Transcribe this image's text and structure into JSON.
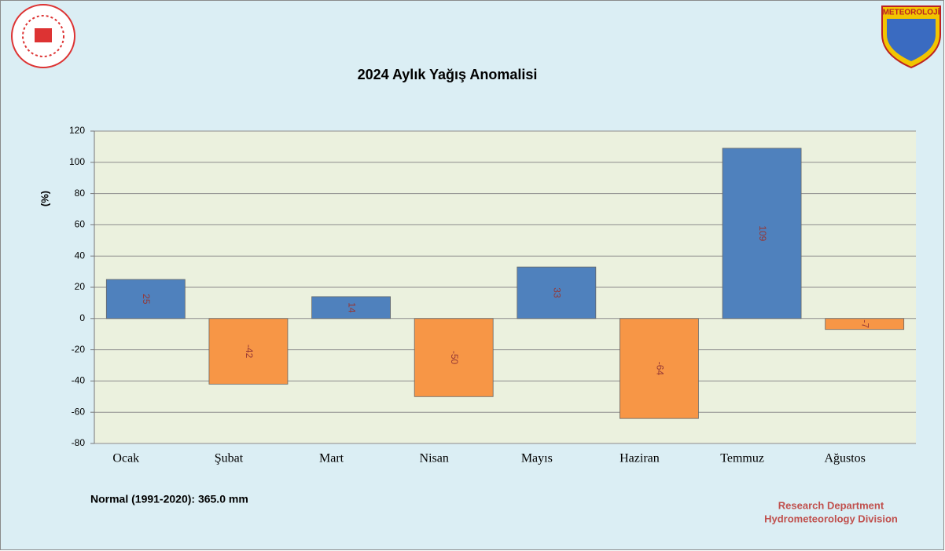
{
  "chart_data": {
    "type": "bar",
    "title": "2024 Aylık Yağış Anomalisi",
    "y_label": "(%)",
    "categories": [
      "Ocak",
      "Şubat",
      "Mart",
      "Nisan",
      "Mayıs",
      "Haziran",
      "Temmuz",
      "Ağustos"
    ],
    "values": [
      25,
      -42,
      14,
      -50,
      33,
      -64,
      109,
      -7
    ],
    "positive_color": "#4f81bd",
    "negative_color": "#f79646",
    "value_label_color": "#953735",
    "ylim": [
      -80,
      120
    ],
    "yticks": [
      -80,
      -60,
      -40,
      -20,
      0,
      20,
      40,
      60,
      80,
      100,
      120
    ],
    "grid": true,
    "note": "Normal (1991-2020): 365.0 mm",
    "credits": [
      "Research Department",
      "Hydrometeorology Division"
    ],
    "logo_text": "METEOROLOJİ"
  }
}
